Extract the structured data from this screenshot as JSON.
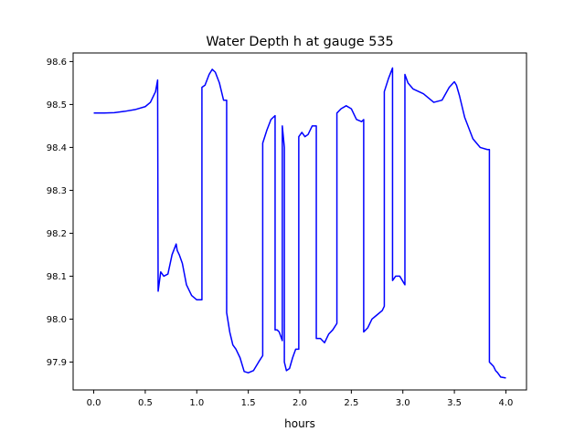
{
  "chart_data": {
    "type": "line",
    "title": "Water Depth h at gauge 535",
    "xlabel": "hours",
    "ylabel": "",
    "xlim": [
      -0.2,
      4.2
    ],
    "ylim": [
      97.835,
      98.62
    ],
    "xticks": [
      0.0,
      0.5,
      1.0,
      1.5,
      2.0,
      2.5,
      3.0,
      3.5,
      4.0
    ],
    "xtick_labels": [
      "0.0",
      "0.5",
      "1.0",
      "1.5",
      "2.0",
      "2.5",
      "3.0",
      "3.5",
      "4.0"
    ],
    "yticks": [
      97.9,
      98.0,
      98.1,
      98.2,
      98.3,
      98.4,
      98.5,
      98.6
    ],
    "ytick_labels": [
      "97.9",
      "98.0",
      "98.1",
      "98.2",
      "98.3",
      "98.4",
      "98.5",
      "98.6"
    ],
    "grid": false,
    "legend": "none",
    "series": [
      {
        "color": "#0000ff",
        "x": [
          0.0,
          0.1,
          0.2,
          0.3,
          0.4,
          0.5,
          0.55,
          0.6,
          0.62,
          0.625,
          0.625,
          0.65,
          0.68,
          0.72,
          0.76,
          0.8,
          0.81,
          0.83,
          0.86,
          0.9,
          0.95,
          1.0,
          1.05,
          1.05,
          1.08,
          1.12,
          1.15,
          1.18,
          1.22,
          1.26,
          1.29,
          1.29,
          1.32,
          1.35,
          1.38,
          1.42,
          1.46,
          1.5,
          1.55,
          1.6,
          1.64,
          1.64,
          1.68,
          1.72,
          1.76,
          1.76,
          1.78,
          1.8,
          1.83,
          1.83,
          1.85,
          1.85,
          1.87,
          1.9,
          1.93,
          1.96,
          1.99,
          1.99,
          2.02,
          2.05,
          2.08,
          2.12,
          2.16,
          2.16,
          2.2,
          2.24,
          2.28,
          2.32,
          2.36,
          2.36,
          2.4,
          2.45,
          2.5,
          2.55,
          2.6,
          2.62,
          2.62,
          2.66,
          2.7,
          2.75,
          2.8,
          2.82,
          2.82,
          2.86,
          2.9,
          2.9,
          2.93,
          2.97,
          3.02,
          3.02,
          3.05,
          3.1,
          3.2,
          3.3,
          3.38,
          3.45,
          3.5,
          3.52,
          3.55,
          3.6,
          3.68,
          3.75,
          3.82,
          3.84,
          3.84,
          3.88,
          3.9,
          3.92,
          3.95,
          4.0
        ],
        "y": [
          98.48,
          98.48,
          98.481,
          98.484,
          98.488,
          98.495,
          98.505,
          98.53,
          98.557,
          98.065,
          98.065,
          98.11,
          98.1,
          98.105,
          98.15,
          98.175,
          98.16,
          98.15,
          98.13,
          98.08,
          98.055,
          98.045,
          98.045,
          98.54,
          98.545,
          98.57,
          98.582,
          98.575,
          98.55,
          98.51,
          98.51,
          98.015,
          97.97,
          97.94,
          97.93,
          97.91,
          97.878,
          97.875,
          97.88,
          97.9,
          97.915,
          98.41,
          98.44,
          98.465,
          98.474,
          97.975,
          97.975,
          97.97,
          97.95,
          98.45,
          98.4,
          97.9,
          97.88,
          97.885,
          97.91,
          97.93,
          97.93,
          98.425,
          98.435,
          98.425,
          98.43,
          98.45,
          98.45,
          97.955,
          97.955,
          97.945,
          97.965,
          97.975,
          97.99,
          98.48,
          98.49,
          98.497,
          98.49,
          98.465,
          98.46,
          98.465,
          97.97,
          97.98,
          98.0,
          98.01,
          98.02,
          98.03,
          98.53,
          98.56,
          98.585,
          98.09,
          98.1,
          98.1,
          98.08,
          98.57,
          98.55,
          98.536,
          98.525,
          98.505,
          98.51,
          98.54,
          98.553,
          98.545,
          98.52,
          98.47,
          98.42,
          98.4,
          98.395,
          98.395,
          97.9,
          97.89,
          97.88,
          97.875,
          97.865,
          97.863
        ]
      }
    ]
  }
}
